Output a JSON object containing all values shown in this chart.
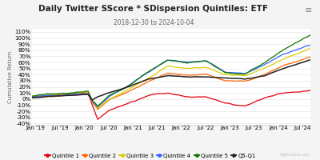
{
  "title": "Daily Twitter SScore * SDispersion Quintiles: ETF",
  "subtitle": "2018-12-30 to 2024-10-04",
  "ylabel": "Cumulative Return",
  "bg_color": "#f4f4f4",
  "plot_bg_color": "#ffffff",
  "grid_color": "#e0e0e0",
  "ylim": [
    -0.42,
    1.15
  ],
  "yticks": [
    -0.4,
    -0.3,
    -0.2,
    -0.1,
    0.0,
    0.1,
    0.2,
    0.3,
    0.4,
    0.5,
    0.6,
    0.7,
    0.8,
    0.9,
    1.0,
    1.1
  ],
  "series": [
    {
      "label": "Quintile 1",
      "color": "#e8000d",
      "lw": 0.9
    },
    {
      "label": "Quintile 2",
      "color": "#ff6600",
      "lw": 0.9
    },
    {
      "label": "Quintile 3",
      "color": "#ddcc00",
      "lw": 0.9
    },
    {
      "label": "Quintile 4",
      "color": "#3366ff",
      "lw": 0.9
    },
    {
      "label": "Quintile 5",
      "color": "#117700",
      "lw": 0.9
    },
    {
      "label": "Q5-Q1",
      "color": "#222222",
      "lw": 1.1
    }
  ],
  "hamburger_color": "#888888",
  "watermark": "Highcharts.com",
  "title_fontsize": 7.5,
  "subtitle_fontsize": 5.5,
  "axis_fontsize": 5.0,
  "legend_fontsize": 5.0
}
